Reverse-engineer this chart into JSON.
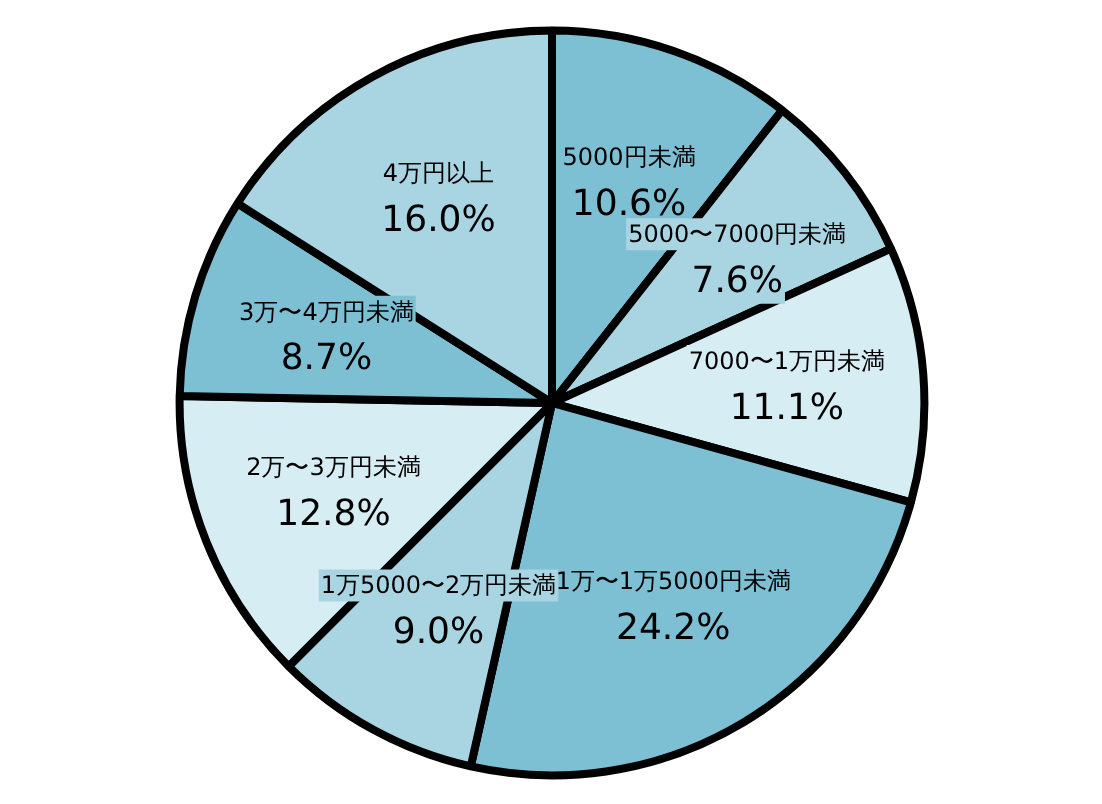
{
  "chart_data": {
    "type": "pie",
    "categories": [
      "5000円未満",
      "5000〜7000円未満",
      "7000〜1万円未満",
      "1万〜1万5000円未満",
      "1万5000〜2万円未満",
      "2万〜3万円未満",
      "3万〜4万円未満",
      "4万円以上"
    ],
    "values": [
      10.6,
      7.6,
      11.1,
      24.2,
      9.0,
      12.8,
      8.7,
      16.0
    ],
    "value_labels": [
      "10.6%",
      "7.6%",
      "11.1%",
      "24.2%",
      "9.0%",
      "12.8%",
      "8.7%",
      "16.0%"
    ],
    "colors": [
      "#7dbfd3",
      "#a9d5e3",
      "#d6edf4",
      "#7dbfd3",
      "#a9d5e3",
      "#d6edf4",
      "#7dbfd3",
      "#a9d5e3"
    ]
  }
}
